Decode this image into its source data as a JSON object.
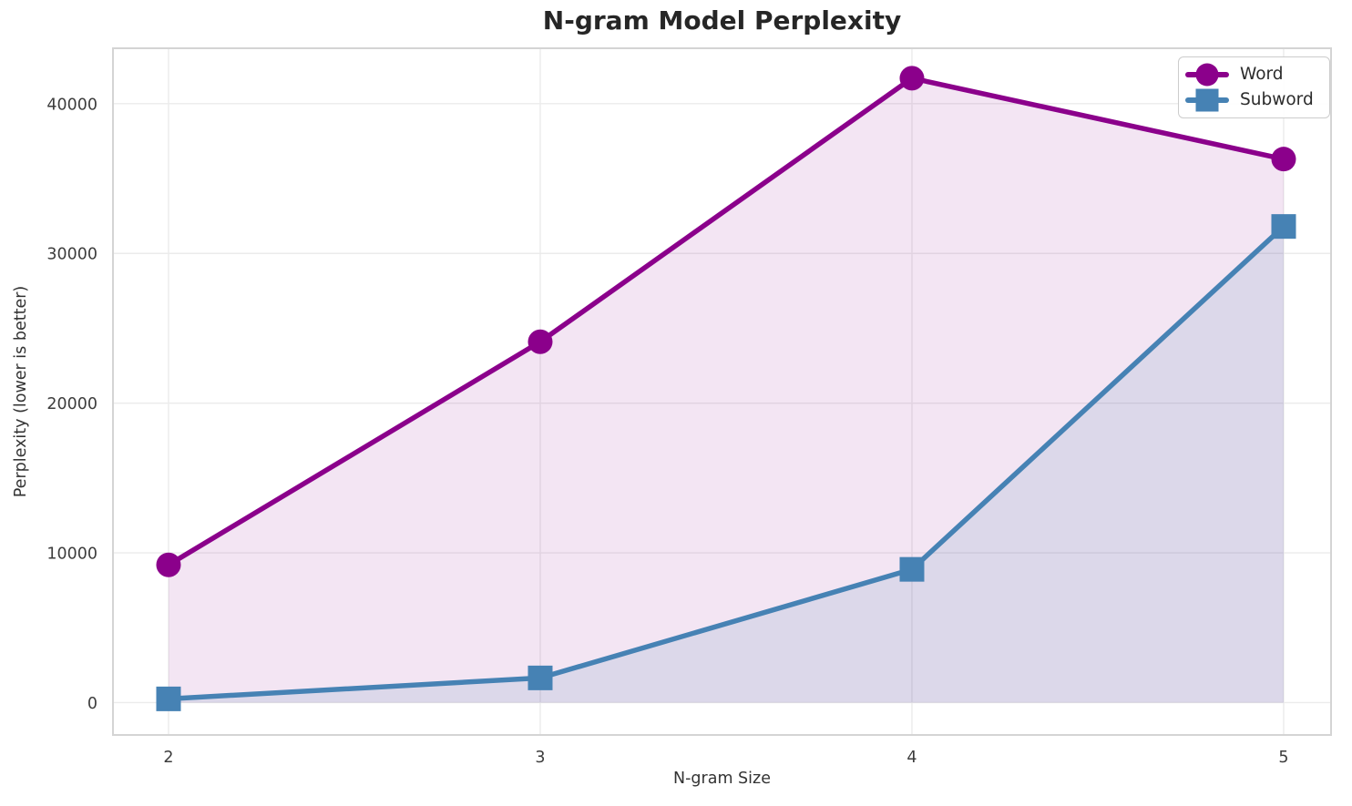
{
  "chart_data": {
    "type": "line",
    "title": "N-gram Model Perplexity",
    "xlabel": "N-gram Size",
    "ylabel": "Perplexity (lower is better)",
    "x": [
      2,
      3,
      4,
      5
    ],
    "xticks": [
      {
        "value": 2,
        "label": "2"
      },
      {
        "value": 3,
        "label": "3"
      },
      {
        "value": 4,
        "label": "4"
      },
      {
        "value": 5,
        "label": "5"
      }
    ],
    "yticks": [
      {
        "value": 0,
        "label": "0"
      },
      {
        "value": 10000,
        "label": "10000"
      },
      {
        "value": 20000,
        "label": "20000"
      },
      {
        "value": 30000,
        "label": "30000"
      },
      {
        "value": 40000,
        "label": "40000"
      }
    ],
    "xlim": [
      1.8505,
      5.1275
    ],
    "ylim": [
      -2160,
      43700
    ],
    "grid": true,
    "legend_position": "upper right",
    "series": [
      {
        "id": "word",
        "name": "Word",
        "color": "#8B008B",
        "marker": "circle",
        "area_fill": "rgba(139,0,139,0.10)",
        "values": [
          9200,
          24100,
          41700,
          36300
        ]
      },
      {
        "id": "subword",
        "name": "Subword",
        "color": "#4682B4",
        "marker": "square",
        "area_fill": "rgba(70,130,180,0.13)",
        "values": [
          250,
          1650,
          8900,
          31800
        ]
      }
    ]
  },
  "colors": {
    "background": "#ffffff",
    "grid": "#ebebeb",
    "spine": "#d4d4d4",
    "tick_label": "#3d3d3d",
    "title": "#262626",
    "legend_border": "#cccccc"
  }
}
